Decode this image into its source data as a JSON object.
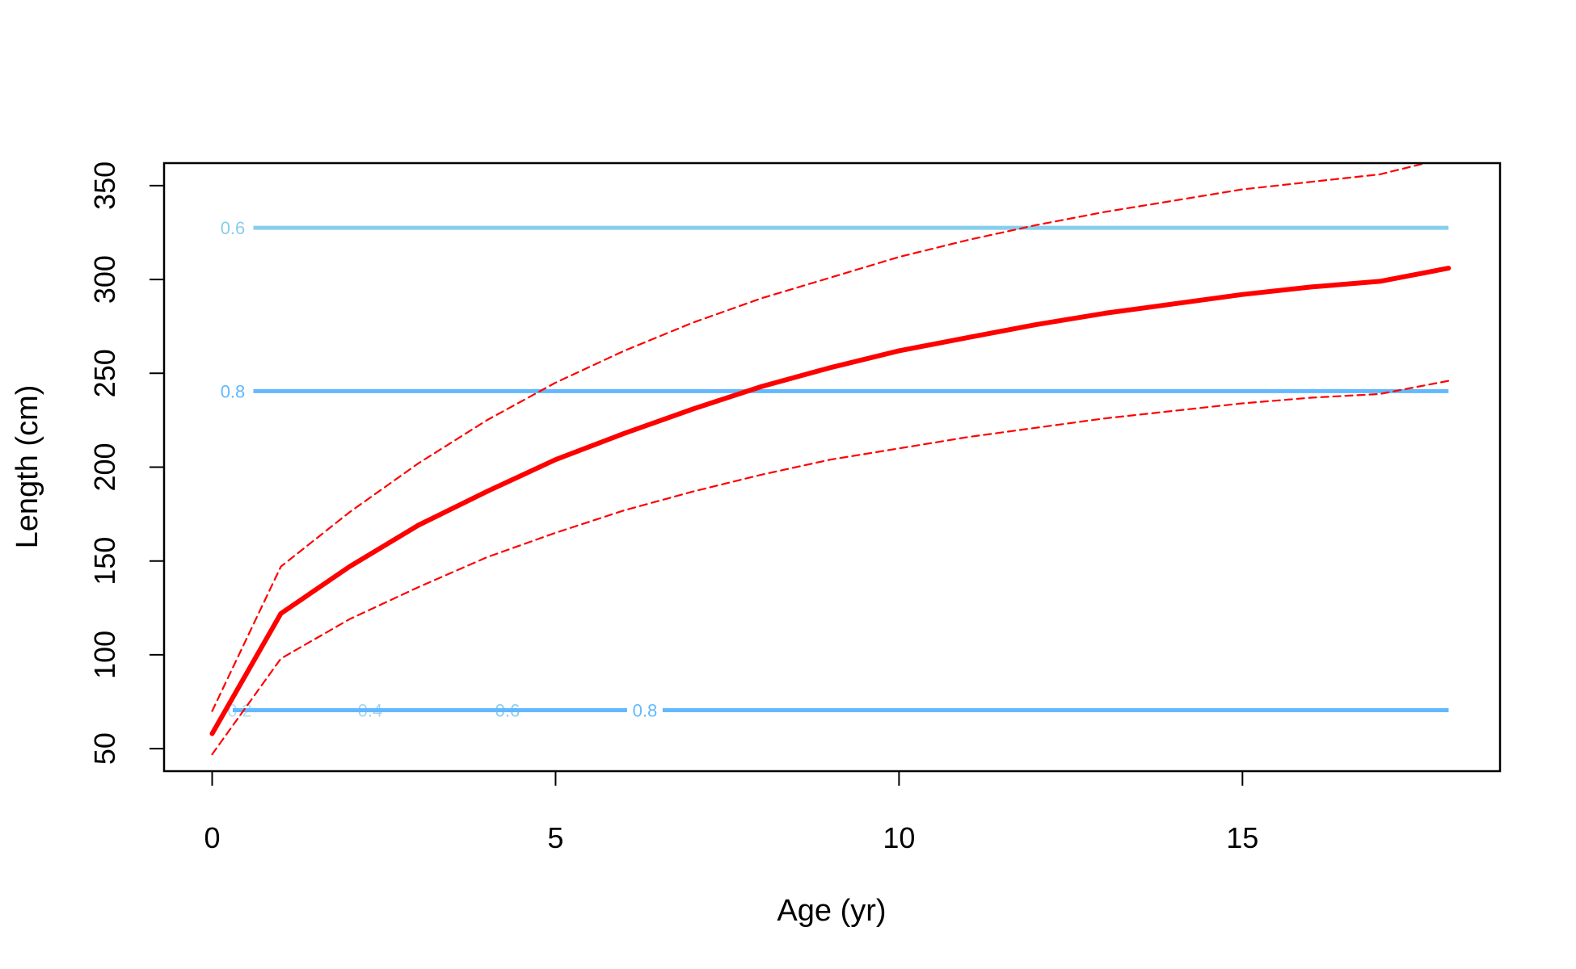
{
  "chart_data": {
    "type": "line",
    "title": "",
    "xlabel": "Age (yr)",
    "ylabel": "Length (cm)",
    "xlim": [
      -0.7,
      18.75
    ],
    "ylim": [
      38,
      362
    ],
    "x_ticks": [
      "0",
      "5",
      "10",
      "15"
    ],
    "y_ticks": [
      "50",
      "100",
      "150",
      "200",
      "250",
      "300",
      "350"
    ],
    "grid": false,
    "legend": "none",
    "series": [
      {
        "style": "solid-thick",
        "color": "#ff0000",
        "x": [
          0,
          1,
          2,
          3,
          4,
          5,
          6,
          7,
          8,
          9,
          10,
          11,
          12,
          13,
          14,
          15,
          16,
          17,
          18
        ],
        "y": [
          58,
          122,
          147,
          169,
          187,
          204,
          218,
          231,
          243,
          253,
          262,
          269,
          276,
          282,
          287,
          292,
          296,
          299,
          306
        ]
      },
      {
        "style": "dashed",
        "color": "#ff0000",
        "x": [
          0,
          1,
          2,
          3,
          4,
          5,
          6,
          7,
          8,
          9,
          10,
          11,
          12,
          13,
          14,
          15,
          16,
          17,
          18
        ],
        "y": [
          70,
          147,
          176,
          202,
          225,
          245,
          262,
          277,
          290,
          301,
          312,
          321,
          329,
          336,
          342,
          348,
          352,
          356,
          365
        ]
      },
      {
        "style": "dashed",
        "color": "#ff0000",
        "x": [
          0,
          1,
          2,
          3,
          4,
          5,
          6,
          7,
          8,
          9,
          10,
          11,
          12,
          13,
          14,
          15,
          16,
          17,
          18
        ],
        "y": [
          47,
          98,
          119,
          136,
          152,
          165,
          177,
          187,
          196,
          204,
          210,
          216,
          221,
          226,
          230,
          234,
          237,
          239,
          246
        ]
      }
    ],
    "contours": [
      {
        "level": "0.6",
        "y": 327.5,
        "x_start": 0.6,
        "x_end": 18,
        "label_x": 0.3,
        "color": "#87ceeb"
      },
      {
        "level": "0.8",
        "y": 240.5,
        "x_start": 0.6,
        "x_end": 18,
        "label_x": 0.3,
        "color": "#63b8ff"
      },
      {
        "level": "0.2",
        "y": 70.5,
        "x_start": 0.3,
        "x_end": 18,
        "label_x": 0.4,
        "color": "#b3ddf6"
      },
      {
        "level": "0.4",
        "y": 70.5,
        "x_start": 0.3,
        "x_end": 18,
        "label_x": 2.3,
        "color": "#a0d4f2"
      },
      {
        "level": "0.6",
        "y": 70.5,
        "x_start": 0.3,
        "x_end": 18,
        "label_x": 4.3,
        "color": "#87ceeb"
      },
      {
        "level": "0.8",
        "y": 70.5,
        "x_start": 0.3,
        "x_end": 18,
        "label_x": 6.3,
        "color": "#63b8ff"
      }
    ]
  }
}
